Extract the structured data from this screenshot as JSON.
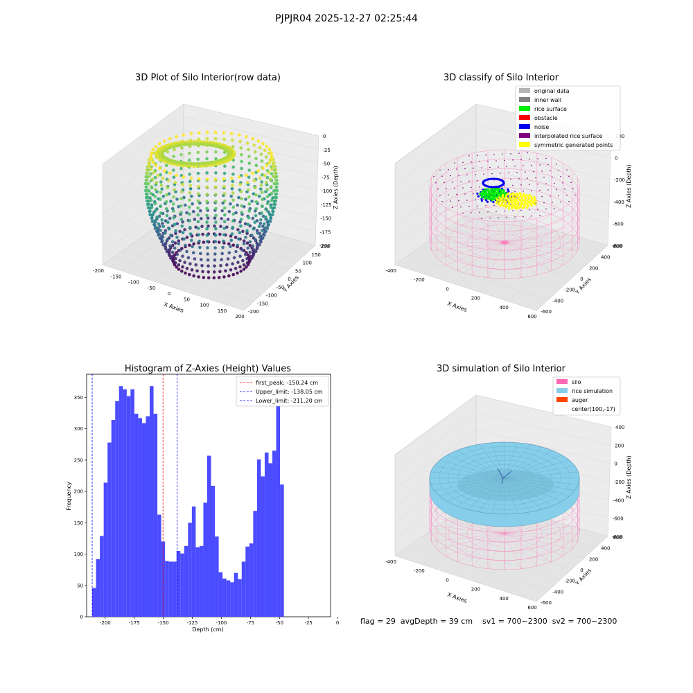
{
  "suptitle": "PJPJR04 2025-12-27 02:25:44",
  "status_line": "flag = 29  avgDepth = 39 cm    sv1 = 700~2300  sv2 = 700~2300",
  "panel_raw": {
    "title": "3D Plot of Silo Interior(row data)",
    "xlabel": "X Axies",
    "ylabel": "Y Axies",
    "zlabel": "Z Axies (Depth)",
    "xticks": [
      "-200",
      "-150",
      "-100",
      "-50",
      "0",
      "50",
      "100",
      "150",
      "200"
    ],
    "yticks": [
      "-200",
      "-150",
      "-100",
      "-50",
      "0",
      "50",
      "100",
      "150",
      "200"
    ],
    "zticks": [
      "0",
      "-25",
      "-50",
      "-75",
      "-100",
      "-125",
      "-150",
      "-175",
      "-200"
    ],
    "colormap": "viridis"
  },
  "panel_classify": {
    "title": "3D classify of Silo Interior",
    "xlabel": "X Axies",
    "ylabel": "Y Axies",
    "zlabel": "Z Axies (Depth)",
    "xticks": [
      "-400",
      "-200",
      "0",
      "200",
      "400",
      "600"
    ],
    "yticks": [
      "-600",
      "-400",
      "-200",
      "0",
      "200",
      "400",
      "600"
    ],
    "zticks": [
      "200",
      "0",
      "-200",
      "-400",
      "-600",
      "-800"
    ],
    "legend": [
      {
        "label": "original data",
        "color": "#b4b4b4"
      },
      {
        "label": "inner wall",
        "color": "#808080"
      },
      {
        "label": "rice surface",
        "color": "#00ee00"
      },
      {
        "label": "obstacle",
        "color": "#ff0000"
      },
      {
        "label": "noise",
        "color": "#0000ee"
      },
      {
        "label": "interpolated rice surface",
        "color": "#800080"
      },
      {
        "label": "symmetric generated points",
        "color": "#ffff00"
      }
    ]
  },
  "panel_sim": {
    "title": "3D simulation of Silo Interior",
    "xlabel": "X Axies",
    "ylabel": "Y Axies",
    "zlabel": "Z Axies (Depth)",
    "xticks": [
      "-400",
      "-200",
      "0",
      "200",
      "400",
      "600"
    ],
    "yticks": [
      "-600",
      "-400",
      "-200",
      "0",
      "200",
      "400",
      "600"
    ],
    "zticks": [
      "400",
      "200",
      "0",
      "-200",
      "-400",
      "-600",
      "-800"
    ],
    "legend": [
      {
        "label": "silo",
        "color": "#ff69b4"
      },
      {
        "label": "rice simulation",
        "color": "#87ceeb"
      },
      {
        "label": "auger",
        "color": "#ff4500"
      },
      {
        "label": "center(100,-17)",
        "color": ""
      }
    ]
  },
  "chart_data": {
    "type": "bar",
    "title": "Histogram of Z-Axies (Height) Values",
    "xlabel": "Depth (cm)",
    "ylabel": "Frequency",
    "xlim": [
      -216,
      -6
    ],
    "ylim": [
      0,
      387
    ],
    "bin_width": 3.3,
    "x_start": -211.2,
    "bar_color": "#4b4bff",
    "values": [
      46,
      92,
      129,
      214,
      278,
      314,
      344,
      368,
      363,
      352,
      363,
      324,
      317,
      309,
      320,
      368,
      324,
      163,
      120,
      89,
      88,
      88,
      105,
      101,
      113,
      150,
      176,
      111,
      113,
      182,
      257,
      209,
      128,
      71,
      61,
      58,
      55,
      70,
      60,
      88,
      112,
      117,
      169,
      251,
      224,
      262,
      245,
      265,
      338,
      211
    ],
    "xticks": [
      "-200",
      "-175",
      "-150",
      "-125",
      "-100",
      "-75",
      "-50",
      "-25",
      "0"
    ],
    "yticks": [
      "0",
      "50",
      "100",
      "150",
      "200",
      "250",
      "300",
      "350"
    ],
    "lines": [
      {
        "label": "first_peak: -150.24 cm",
        "x": -150.24,
        "color": "#ff0000"
      },
      {
        "label": "Upper_limit: -138.05 cm",
        "x": -138.05,
        "color": "#0000ff"
      },
      {
        "label": "Lower_limit: -211.20 cm",
        "x": -211.2,
        "color": "#0000ff"
      }
    ],
    "legend_position": "top-right"
  }
}
